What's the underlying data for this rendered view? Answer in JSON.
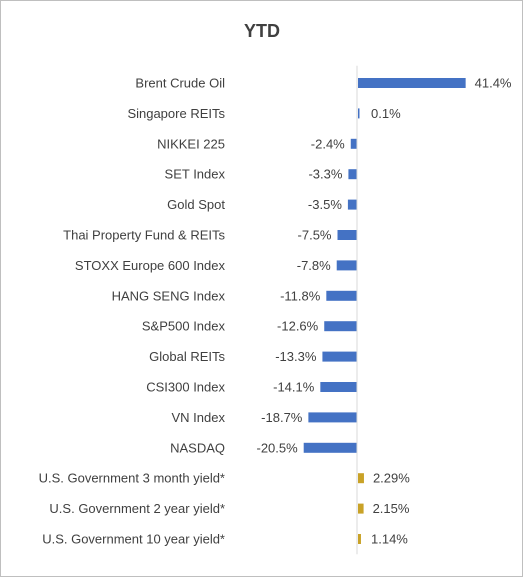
{
  "chart_data": {
    "type": "bar",
    "orientation": "horizontal",
    "title": "YTD",
    "categories": [
      "Brent Crude Oil",
      "Singapore REITs",
      "NIKKEI 225",
      "SET Index",
      "Gold Spot",
      "Thai Property Fund & REITs",
      "STOXX Europe 600 Index",
      "HANG SENG Index",
      "S&P500 Index",
      "Global REITs",
      "CSI300 Index",
      "VN Index",
      "NASDAQ",
      "U.S. Government 3 month yield*",
      "U.S. Government 2 year yield*",
      "U.S. Government 10 year yield*"
    ],
    "values": [
      41.4,
      0.1,
      -2.4,
      -3.3,
      -3.5,
      -7.5,
      -7.8,
      -11.8,
      -12.6,
      -13.3,
      -14.1,
      -18.7,
      -20.5,
      2.29,
      2.15,
      1.14
    ],
    "labels": [
      "41.4%",
      "0.1%",
      "-2.4%",
      "-3.3%",
      "-3.5%",
      "-7.5%",
      "-7.8%",
      "-11.8%",
      "-12.6%",
      "-13.3%",
      "-14.1%",
      "-18.7%",
      "-20.5%",
      "2.29%",
      "2.15%",
      "1.14%"
    ],
    "bar_colors": [
      "#4472C4",
      "#4472C4",
      "#4472C4",
      "#4472C4",
      "#4472C4",
      "#4472C4",
      "#4472C4",
      "#4472C4",
      "#4472C4",
      "#4472C4",
      "#4472C4",
      "#4472C4",
      "#4472C4",
      "#C9A227",
      "#C9A227",
      "#C9A227"
    ],
    "xlim": [
      -21.5,
      42
    ],
    "grid": false,
    "legend": "none"
  }
}
